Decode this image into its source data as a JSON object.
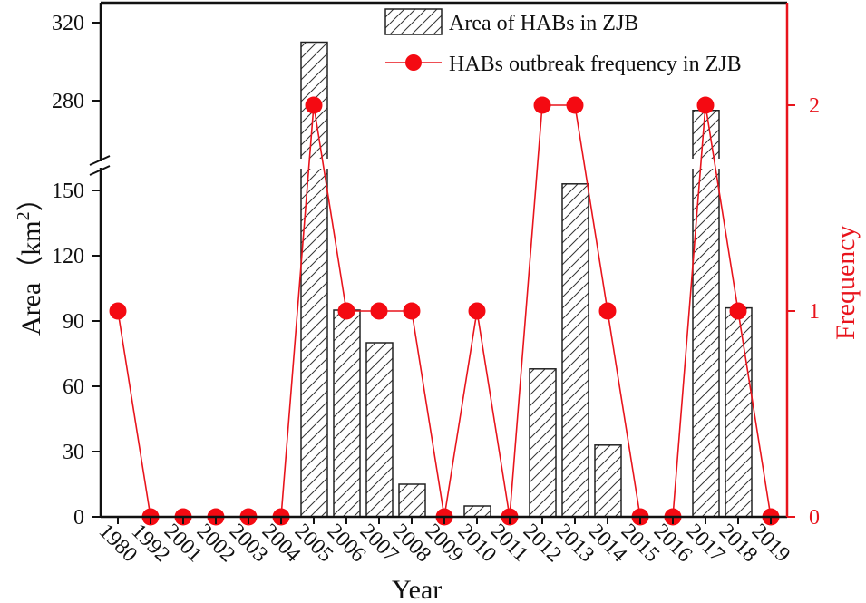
{
  "chart_data": {
    "type": "bar+line",
    "categories": [
      "1980",
      "1992",
      "2001",
      "2002",
      "2003",
      "2004",
      "2005",
      "2006",
      "2007",
      "2008",
      "2009",
      "2010",
      "2011",
      "2012",
      "2013",
      "2014",
      "2015",
      "2016",
      "2017",
      "2018",
      "2019"
    ],
    "series": [
      {
        "name": "Area of HABs in ZJB",
        "type": "bar",
        "axis": "left",
        "values": [
          0,
          0,
          0,
          0,
          0,
          0,
          310,
          95,
          80,
          15,
          0,
          5,
          0,
          68,
          153,
          33,
          0,
          0,
          275,
          96,
          0
        ]
      },
      {
        "name": "HABs outbreak frequency in ZJB",
        "type": "line",
        "axis": "right",
        "color": "#e8141c",
        "values": [
          1,
          0,
          0,
          0,
          0,
          0,
          2,
          1,
          1,
          1,
          0,
          1,
          0,
          2,
          2,
          1,
          0,
          0,
          2,
          1,
          0
        ]
      }
    ],
    "title": "",
    "xlabel": "Year",
    "ylabel": "Area（km²）",
    "ylabel_base": "Area（km",
    "ylabel_sup": "2",
    "ylabel_close": "）",
    "y2label": "Frequency",
    "ylim": [
      0,
      320
    ],
    "axis_break": [
      160,
      260
    ],
    "y_ticks_lower": [
      0,
      30,
      60,
      90,
      120,
      150
    ],
    "y_ticks_upper": [
      280,
      320
    ],
    "y2lim": [
      0,
      2.4
    ],
    "y2_ticks": [
      0,
      1,
      2
    ],
    "legend_position": "upper-right",
    "grid": false
  },
  "legend": {
    "items": [
      {
        "label": "Area of HABs in ZJB",
        "swatch": "hatched-bar"
      },
      {
        "label": "HABs outbreak frequency in ZJB",
        "swatch": "red-line-dot"
      }
    ]
  },
  "colors": {
    "axis": "#111111",
    "right_axis": "#e8141c",
    "line": "#e8141c",
    "bar_edge": "#222222"
  }
}
